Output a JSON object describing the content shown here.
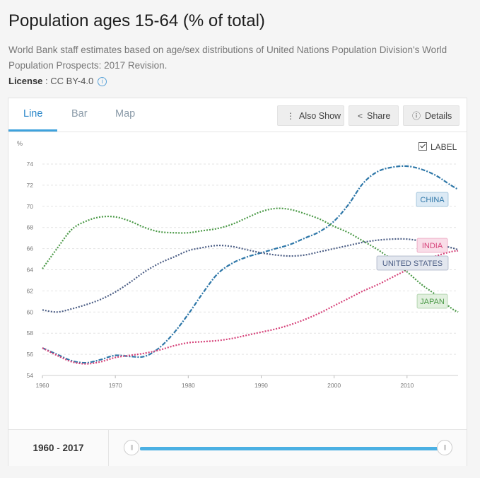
{
  "header": {
    "title": "Population ages 15-64 (% of total)",
    "subtitle": "World Bank staff estimates based on age/sex distributions of United Nations Population Division's World Population Prospects: 2017 Revision.",
    "license_label": "License",
    "license_value": " : CC BY-4.0"
  },
  "tabs": [
    {
      "label": "Line",
      "active": true
    },
    {
      "label": "Bar",
      "active": false
    },
    {
      "label": "Map",
      "active": false
    }
  ],
  "toolbar": {
    "also_show": "Also Show",
    "share": "Share",
    "details": "Details"
  },
  "label_toggle": {
    "text": "LABEL",
    "checked": true
  },
  "range": {
    "start": "1960",
    "separator": " - ",
    "end": "2017"
  },
  "chart_data": {
    "type": "line",
    "ylabel": "%",
    "xlabel": "",
    "xlim": [
      1960,
      2017
    ],
    "ylim": [
      54,
      74
    ],
    "x_ticks": [
      1960,
      1970,
      1980,
      1990,
      2000,
      2010
    ],
    "y_ticks": [
      54,
      56,
      58,
      60,
      62,
      64,
      66,
      68,
      70,
      72,
      74
    ],
    "grid": "horizontal",
    "series": [
      {
        "name": "CHINA",
        "color": "#2e77a8",
        "label_bg": "#dceaf5",
        "x": [
          1960,
          1962,
          1964,
          1966,
          1968,
          1970,
          1972,
          1974,
          1976,
          1978,
          1980,
          1982,
          1984,
          1986,
          1988,
          1990,
          1992,
          1994,
          1996,
          1998,
          2000,
          2002,
          2004,
          2006,
          2008,
          2010,
          2012,
          2014,
          2016,
          2017
        ],
        "y": [
          56.6,
          56.0,
          55.4,
          55.2,
          55.5,
          55.9,
          55.8,
          55.8,
          56.6,
          58.0,
          59.8,
          61.8,
          63.6,
          64.6,
          65.2,
          65.6,
          66.0,
          66.4,
          67.0,
          67.6,
          68.6,
          70.2,
          72.2,
          73.3,
          73.7,
          73.8,
          73.5,
          72.9,
          72.0,
          71.6
        ]
      },
      {
        "name": "INDIA",
        "color": "#d6437a",
        "label_bg": "#f9dde8",
        "x": [
          1960,
          1962,
          1964,
          1966,
          1968,
          1970,
          1972,
          1974,
          1976,
          1978,
          1980,
          1982,
          1984,
          1986,
          1988,
          1990,
          1992,
          1994,
          1996,
          1998,
          2000,
          2002,
          2004,
          2006,
          2008,
          2010,
          2012,
          2014,
          2016,
          2017
        ],
        "y": [
          56.6,
          55.9,
          55.3,
          55.1,
          55.3,
          55.7,
          55.9,
          56.1,
          56.4,
          56.8,
          57.1,
          57.2,
          57.3,
          57.5,
          57.8,
          58.1,
          58.4,
          58.8,
          59.3,
          59.9,
          60.6,
          61.3,
          62.0,
          62.6,
          63.3,
          64.0,
          64.7,
          65.3,
          65.7,
          65.8
        ]
      },
      {
        "name": "UNITED STATES",
        "color": "#4d5f86",
        "label_bg": "#e3e7ef",
        "x": [
          1960,
          1962,
          1964,
          1966,
          1968,
          1970,
          1972,
          1974,
          1976,
          1978,
          1980,
          1982,
          1984,
          1986,
          1988,
          1990,
          1992,
          1994,
          1996,
          1998,
          2000,
          2002,
          2004,
          2006,
          2008,
          2010,
          2012,
          2014,
          2016,
          2017
        ],
        "y": [
          60.2,
          60.0,
          60.3,
          60.7,
          61.2,
          61.9,
          62.8,
          63.8,
          64.6,
          65.2,
          65.8,
          66.1,
          66.3,
          66.2,
          65.9,
          65.6,
          65.4,
          65.3,
          65.4,
          65.7,
          66.0,
          66.3,
          66.6,
          66.8,
          66.9,
          66.9,
          66.7,
          66.4,
          66.1,
          65.9
        ]
      },
      {
        "name": "JAPAN",
        "color": "#4c9a48",
        "label_bg": "#e2f0df",
        "x": [
          1960,
          1962,
          1964,
          1966,
          1968,
          1970,
          1972,
          1974,
          1976,
          1978,
          1980,
          1982,
          1984,
          1986,
          1988,
          1990,
          1992,
          1994,
          1996,
          1998,
          2000,
          2002,
          2004,
          2006,
          2008,
          2010,
          2012,
          2014,
          2016,
          2017
        ],
        "y": [
          64.1,
          66.0,
          67.8,
          68.6,
          69.0,
          69.0,
          68.6,
          68.0,
          67.6,
          67.5,
          67.5,
          67.7,
          67.9,
          68.3,
          68.9,
          69.5,
          69.8,
          69.7,
          69.3,
          68.8,
          68.1,
          67.5,
          66.7,
          65.9,
          64.9,
          63.8,
          62.6,
          61.6,
          60.4,
          60.0
        ]
      }
    ]
  }
}
